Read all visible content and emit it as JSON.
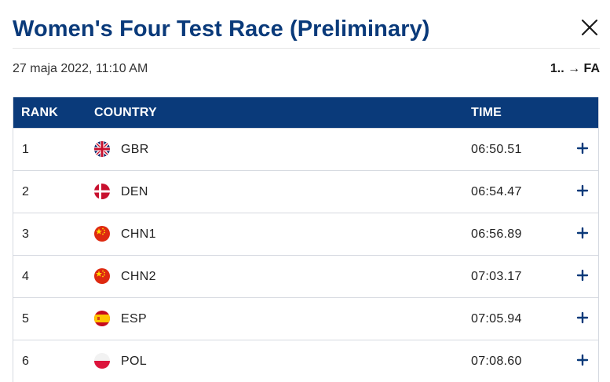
{
  "header": {
    "title": "Women's Four Test Race (Preliminary)",
    "close_icon": "close-icon"
  },
  "meta": {
    "date": "27 maja 2022, 11:10 AM",
    "progression": "1.. → FA"
  },
  "table": {
    "columns": {
      "rank": "RANK",
      "country": "COUNTRY",
      "time": "TIME"
    },
    "rows": [
      {
        "rank": "1",
        "flag": "flag-gbr-icon",
        "country": "GBR",
        "time": "06:50.51"
      },
      {
        "rank": "2",
        "flag": "flag-den-icon",
        "country": "DEN",
        "time": "06:54.47"
      },
      {
        "rank": "3",
        "flag": "flag-chn-icon",
        "country": "CHN1",
        "time": "06:56.89"
      },
      {
        "rank": "4",
        "flag": "flag-chn-icon",
        "country": "CHN2",
        "time": "07:03.17"
      },
      {
        "rank": "5",
        "flag": "flag-esp-icon",
        "country": "ESP",
        "time": "07:05.94"
      },
      {
        "rank": "6",
        "flag": "flag-pol-icon",
        "country": "POL",
        "time": "07:08.60"
      }
    ]
  },
  "colors": {
    "brand_navy": "#0a3a7a",
    "row_border": "#d5d9e0"
  }
}
